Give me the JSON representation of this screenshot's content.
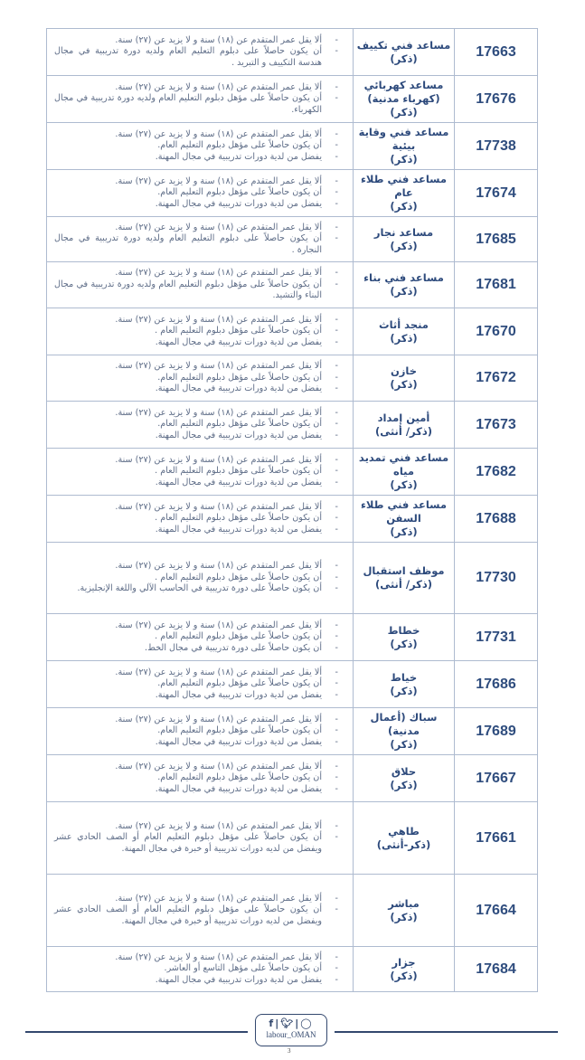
{
  "jobs": [
    {
      "code": "17663",
      "title": "مساعد فني تكييف",
      "gender": "(ذكر)",
      "requirements": [
        "ألا يقل عمر المتقدم عن (١٨) سنة و لا يزيد عن (٢٧) سنة.",
        "أن يكون حاصلاً على دبلوم التعليم العام ولديه دورة تدريبية في مجال هندسة التكييف و التبريد ."
      ]
    },
    {
      "code": "17676",
      "title": "مساعد كهربائي (كهرباء مدنية)",
      "gender": "(ذكر)",
      "requirements": [
        "ألا يقل عمر المتقدم عن (١٨) سنة و لا يزيد عن (٢٧) سنة.",
        "أن يكون حاصلاً على مؤهل دبلوم التعليم العام ولديه دورة تدريبية في مجال الكهرباء."
      ]
    },
    {
      "code": "17738",
      "title": "مساعد فني وقاية بيئية",
      "gender": "(ذكر)",
      "requirements": [
        "ألا يقل عمر المتقدم عن (١٨) سنة و لا يزيد عن (٢٧) سنة.",
        "أن يكون حاصلاً على مؤهل دبلوم التعليم العام.",
        "يفضل من لدية دورات تدريبية في مجال المهنة."
      ]
    },
    {
      "code": "17674",
      "title": "مساعد فني طلاء عام",
      "gender": "(ذكر)",
      "requirements": [
        "ألا يقل عمر المتقدم عن (١٨) سنة و لا يزيد عن (٢٧) سنة.",
        "أن يكون حاصلاً على مؤهل دبلوم التعليم العام.",
        "يفضل من لدية دورات تدريبية في مجال المهنة."
      ]
    },
    {
      "code": "17685",
      "title": "مساعد نجار",
      "gender": "(ذكر)",
      "requirements": [
        "ألا يقل عمر المتقدم عن (١٨) سنة و لا يزيد عن (٢٧) سنة.",
        "أن يكون حاصلاً على دبلوم التعليم العام ولديه دورة تدريبية في مجال النجارة ."
      ]
    },
    {
      "code": "17681",
      "title": "مساعد فني بناء",
      "gender": "(ذكر)",
      "requirements": [
        "ألا يقل عمر المتقدم عن (١٨) سنة و لا يزيد عن (٢٧) سنة.",
        "أن يكون حاصلاً على مؤهل دبلوم التعليم العام ولديه دورة تدريبية في مجال البناء والتشيد."
      ]
    },
    {
      "code": "17670",
      "title": "منجد أثاث",
      "gender": "(ذكر)",
      "requirements": [
        "ألا يقل عمر المتقدم عن (١٨) سنة و لا يزيد عن (٢٧) سنة.",
        "أن يكون حاصلاً على مؤهل دبلوم التعليم العام .",
        "يفضل من لدية دورات تدريبية في مجال المهنة."
      ]
    },
    {
      "code": "17672",
      "title": "خازن",
      "gender": "(ذكر)",
      "requirements": [
        "ألا يقل عمر المتقدم عن (١٨) سنة و لا يزيد عن (٢٧) سنة.",
        "أن يكون حاصلاً على مؤهل دبلوم التعليم العام.",
        "يفضل من لدية دورات تدريبية في مجال المهنة."
      ]
    },
    {
      "code": "17673",
      "title": "أمين إمداد",
      "gender": "(ذكر/ أنثى)",
      "requirements": [
        "ألا يقل عمر المتقدم عن (١٨) سنة و لا يزيد عن (٢٧) سنة.",
        "أن يكون حاصلاً على مؤهل دبلوم التعليم العام.",
        "يفضل من لدية دورات تدريبية في مجال المهنة."
      ]
    },
    {
      "code": "17682",
      "title": "مساعد فني تمديد مياه",
      "gender": "(ذكر)",
      "requirements": [
        "ألا يقل عمر المتقدم عن (١٨) سنة و لا يزيد عن (٢٧) سنة.",
        "أن يكون حاصلاً على مؤهل دبلوم التعليم العام .",
        "يفضل من لدية دورات تدريبية في مجال المهنة."
      ]
    },
    {
      "code": "17688",
      "title": "مساعد فني طلاء السفن",
      "gender": "(ذكر)",
      "requirements": [
        "ألا يقل عمر المتقدم عن (١٨) سنة و لا يزيد عن (٢٧) سنة.",
        "أن يكون حاصلاً على مؤهل دبلوم التعليم العام .",
        "يفضل من لدية دورات تدريبية في مجال المهنة."
      ]
    },
    {
      "code": "17730",
      "title": "موظف استقبال",
      "gender": "(ذكر/ أنثى)",
      "requirements": [
        "ألا يقل عمر المتقدم عن (١٨) سنة و لا يزيد عن (٢٧) سنة.",
        "أن يكون حاصلاً على مؤهل دبلوم التعليم العام .",
        "أن يكون حاصلاً على دورة تدريبية في الحاسب الآلي واللغة الإنجليزية."
      ]
    },
    {
      "code": "17731",
      "title": "خطاط",
      "gender": "(ذكر)",
      "requirements": [
        "ألا يقل عمر المتقدم عن (١٨) سنة و لا يزيد عن (٢٧) سنة.",
        "أن يكون حاصلاً على مؤهل دبلوم التعليم العام .",
        "أن يكون حاصلاً على دورة تدريبية في مجال الخط."
      ]
    },
    {
      "code": "17686",
      "title": "خياط",
      "gender": "(ذكر)",
      "requirements": [
        "ألا يقل عمر المتقدم عن (١٨) سنة و لا يزيد عن (٢٧) سنة.",
        "أن يكون حاصلاً على مؤهل دبلوم التعليم العام.",
        "يفضل من لدية دورات تدريبية في مجال المهنة."
      ]
    },
    {
      "code": "17689",
      "title": "سباك (أعمال مدنية)",
      "gender": "(ذكر)",
      "requirements": [
        "ألا يقل عمر المتقدم عن (١٨) سنة و لا يزيد عن (٢٧) سنة.",
        "أن يكون حاصلاً على مؤهل دبلوم التعليم العام.",
        "يفضل من لدية دورات تدريبية في مجال المهنة."
      ]
    },
    {
      "code": "17667",
      "title": "حلاق",
      "gender": "(ذكر)",
      "requirements": [
        "ألا يقل عمر المتقدم عن (١٨) سنة و لا يزيد عن (٢٧) سنة.",
        "أن يكون حاصلاً على مؤهل دبلوم التعليم العام.",
        "يفضل من لدية دورات تدريبية في مجال المهنة."
      ]
    },
    {
      "code": "17661",
      "title": "طاهي",
      "gender": "(ذكر-أنثى)",
      "requirements": [
        "ألا يقل عمر المتقدم عن (١٨) سنة و لا يزيد عن (٢٧) سنة.",
        "أن يكون حاصلاً على مؤهل دبلوم التعليم العام أو الصف الحادي عشر ويفضل من لديه دورات تدريبية أو خبرة في مجال المهنة."
      ]
    },
    {
      "code": "17664",
      "title": "مباشر",
      "gender": "(ذكر)",
      "requirements": [
        "ألا يقل عمر المتقدم عن (١٨) سنة و لا يزيد عن (٢٧) سنة.",
        "أن يكون حاصلاً على مؤهل دبلوم التعليم العام أو الصف الحادي عشر ويفضل من لديه دورات تدريبية أو خبرة في مجال المهنة."
      ]
    },
    {
      "code": "17684",
      "title": "جزار",
      "gender": "(ذكر)",
      "requirements": [
        "ألا يقل عمر المتقدم عن (١٨) سنة و لا يزيد عن (٢٧) سنة.",
        "أن يكون حاصلاً على مؤهل التاسع أو العاشر.",
        "يفضل من لدية دورات تدريبية في مجال المهنة."
      ]
    }
  ],
  "footer": {
    "icons": [
      "facebook-icon",
      "twitter-icon",
      "instagram-icon"
    ],
    "handle": "labour_OMAN",
    "page_number": "3"
  }
}
